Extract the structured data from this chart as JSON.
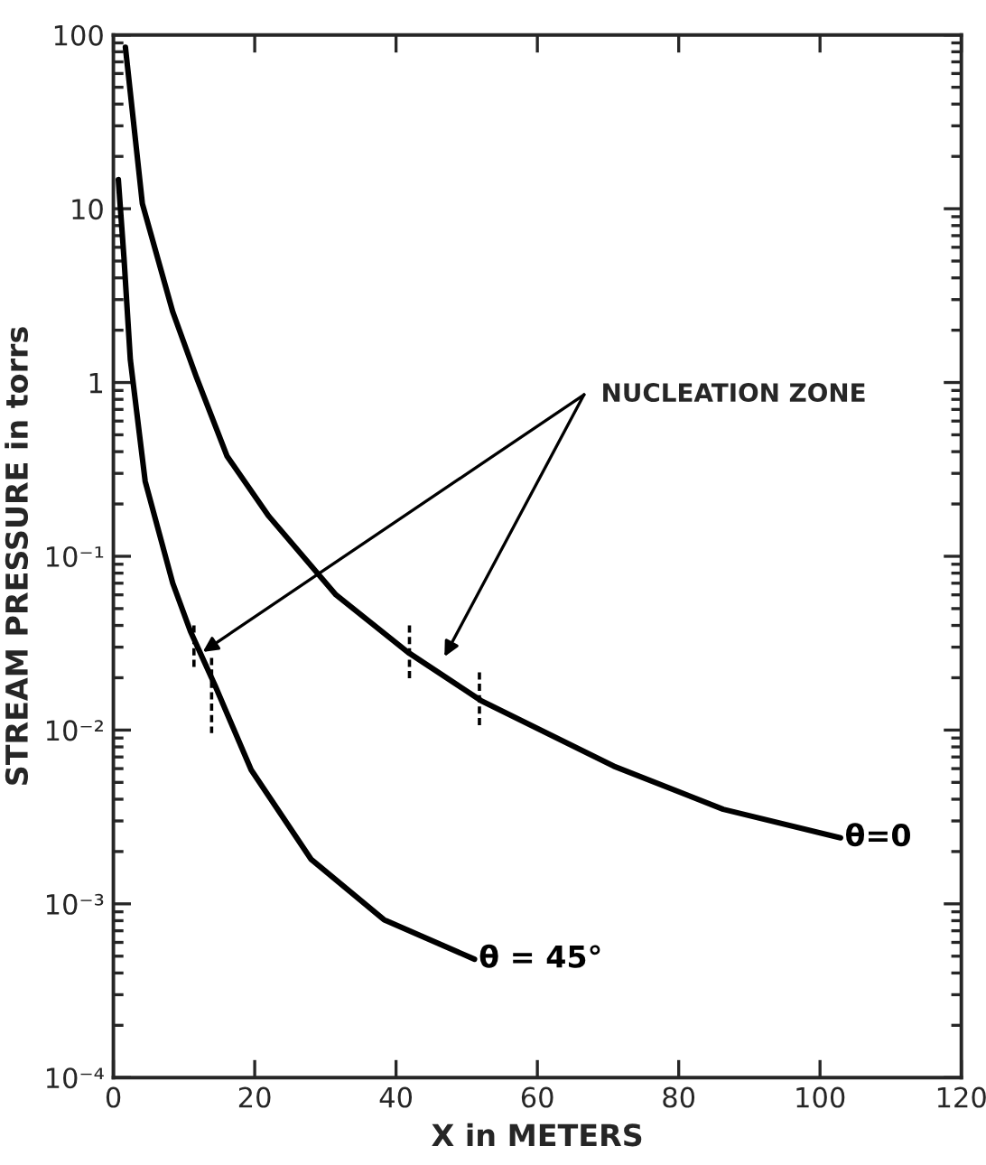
{
  "chart_data": {
    "type": "line",
    "xlabel": "X in METERS",
    "ylabel": "STREAM PRESSURE in torrs",
    "log": "y",
    "xlim": [
      0,
      120
    ],
    "xticks": [
      0,
      20,
      40,
      60,
      80,
      100,
      120
    ],
    "ylim": [
      0.0001,
      100
    ],
    "yticks": [
      {
        "value": 0.0001,
        "label": "10⁻⁴"
      },
      {
        "value": 0.001,
        "label": "10⁻³"
      },
      {
        "value": 0.01,
        "label": "10⁻²"
      },
      {
        "value": 0.1,
        "label": "10⁻¹"
      },
      1,
      10,
      100
    ],
    "grid": false,
    "marker": "none",
    "line_style": "solid",
    "annotations": [
      "NUCLEATION ZONE"
    ],
    "series": [
      {
        "name": "θ=0",
        "color": "#000000",
        "x": [
          1.7,
          4.1,
          8.4,
          11.8,
          16.1,
          22,
          31.5,
          41.7,
          52,
          70.8,
          86.3,
          102.9
        ],
        "values": [
          85,
          10.7,
          2.55,
          1.06,
          0.376,
          0.17,
          0.06,
          0.028,
          0.0148,
          0.0062,
          0.0035,
          0.0024
        ]
      },
      {
        "name": "θ = 45°",
        "color": "#000000",
        "x": [
          0.7,
          1.5,
          2.4,
          4.5,
          8.4,
          10.9,
          14.4,
          19.5,
          28,
          38.3,
          51.1
        ],
        "values": [
          14.7,
          5.2,
          1.35,
          0.27,
          0.07,
          0.037,
          0.018,
          0.0059,
          0.0018,
          0.00081,
          0.00048
        ]
      },
      {
        "color": "#000000",
        "line_style": "dashed",
        "x": [
          11.4,
          11.4
        ],
        "values": [
          0.04,
          0.022
        ]
      },
      {
        "color": "#000000",
        "line_style": "dashed",
        "x": [
          13.9,
          13.9
        ],
        "values": [
          0.026,
          0.0096
        ]
      },
      {
        "color": "#000000",
        "line_style": "dashed",
        "x": [
          41.9,
          41.9
        ],
        "values": [
          0.04,
          0.019
        ]
      },
      {
        "color": "#000000",
        "line_style": "dashed",
        "x": [
          51.8,
          51.8
        ],
        "values": [
          0.0215,
          0.0105
        ]
      }
    ]
  }
}
